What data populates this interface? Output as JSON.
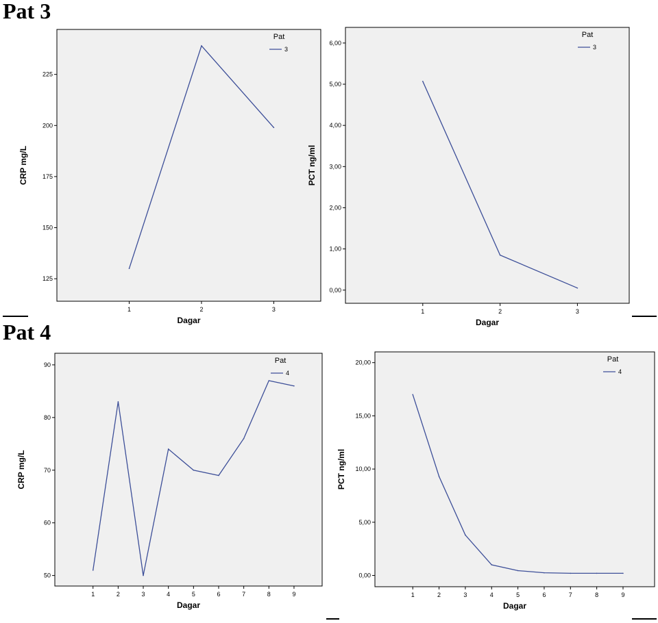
{
  "sections": [
    {
      "title": "Pat 3"
    },
    {
      "title": "Pat 4"
    }
  ],
  "colors": {
    "line": "#3c4e98",
    "plot_bg": "#f0f0f0",
    "axis": "#000000"
  },
  "chart_data": [
    {
      "type": "line",
      "section": "Pat 3",
      "xlabel": "Dagar",
      "ylabel": "CRP mg/L",
      "x": [
        1,
        2,
        3
      ],
      "x_ticks": [
        "1",
        "2",
        "3"
      ],
      "xlim": [
        0.0,
        3.65
      ],
      "y_ticks": [
        125,
        150,
        175,
        200,
        225
      ],
      "y_tick_labels": [
        "125",
        "150",
        "175",
        "200",
        "225"
      ],
      "ylim": [
        114,
        247
      ],
      "legend": {
        "title": "Pat",
        "position": "top-right"
      },
      "series": [
        {
          "name": "3",
          "values": [
            130,
            239,
            199
          ]
        }
      ]
    },
    {
      "type": "line",
      "section": "Pat 3",
      "xlabel": "Dagar",
      "ylabel": "PCT ng/ml",
      "x": [
        1,
        2,
        3
      ],
      "x_ticks": [
        "1",
        "2",
        "3"
      ],
      "xlim": [
        0.0,
        3.67
      ],
      "y_ticks": [
        0,
        1,
        2,
        3,
        4,
        5,
        6
      ],
      "y_tick_labels": [
        "0,00",
        "1,00",
        "2,00",
        "3,00",
        "4,00",
        "5,00",
        "6,00"
      ],
      "ylim": [
        -0.32,
        6.38
      ],
      "legend": {
        "title": "Pat",
        "position": "top-right"
      },
      "series": [
        {
          "name": "3",
          "values": [
            5.07,
            0.85,
            0.05
          ]
        }
      ]
    },
    {
      "type": "line",
      "section": "Pat 4",
      "xlabel": "Dagar",
      "ylabel": "CRP mg/L",
      "x": [
        1,
        2,
        3,
        4,
        5,
        6,
        7,
        8,
        9
      ],
      "x_ticks": [
        "1",
        "2",
        "3",
        "4",
        "5",
        "6",
        "7",
        "8",
        "9"
      ],
      "xlim": [
        -0.52,
        10.12
      ],
      "y_ticks": [
        50,
        60,
        70,
        80,
        90
      ],
      "y_tick_labels": [
        "50",
        "60",
        "70",
        "80",
        "90"
      ],
      "ylim": [
        48,
        92.2
      ],
      "legend": {
        "title": "Pat",
        "position": "top-right"
      },
      "series": [
        {
          "name": "4",
          "values": [
            51,
            83,
            50,
            74,
            70,
            69,
            76,
            87,
            86
          ]
        }
      ]
    },
    {
      "type": "line",
      "section": "Pat 4",
      "xlabel": "Dagar",
      "ylabel": "PCT ng/ml",
      "x": [
        1,
        2,
        3,
        4,
        5,
        6,
        7,
        8,
        9
      ],
      "x_ticks": [
        "1",
        "2",
        "3",
        "4",
        "5",
        "6",
        "7",
        "8",
        "9"
      ],
      "xlim": [
        -0.44,
        10.2
      ],
      "y_ticks": [
        0,
        5,
        10,
        15,
        20
      ],
      "y_tick_labels": [
        "0,00",
        "5,00",
        "10,00",
        "15,00",
        "20,00"
      ],
      "ylim": [
        -1.06,
        21.01
      ],
      "legend": {
        "title": "Pat",
        "position": "top-right"
      },
      "series": [
        {
          "name": "4",
          "values": [
            17.0,
            9.3,
            3.8,
            1.0,
            0.45,
            0.25,
            0.2,
            0.2,
            0.2
          ]
        }
      ]
    }
  ]
}
